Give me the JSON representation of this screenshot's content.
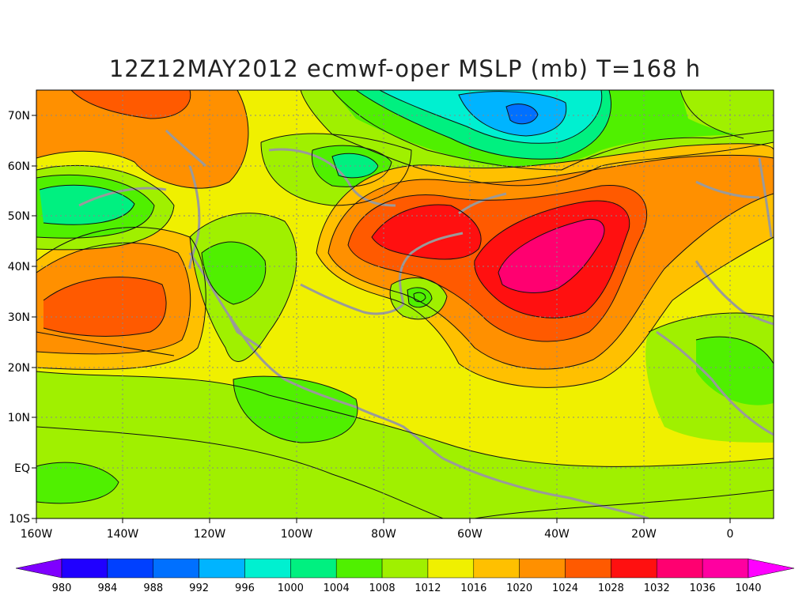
{
  "title": "12Z12MAY2012 ecmwf-oper MSLP (mb) T=168 h",
  "latitude_labels": [
    "70N",
    "60N",
    "50N",
    "40N",
    "30N",
    "20N",
    "10N",
    "EQ",
    "10S"
  ],
  "longitude_labels": [
    "160W",
    "140W",
    "120W",
    "100W",
    "80W",
    "60W",
    "40W",
    "20W",
    "0"
  ],
  "colorbar": {
    "labels": [
      "980",
      "984",
      "988",
      "992",
      "996",
      "1000",
      "1004",
      "1008",
      "1012",
      "1016",
      "1020",
      "1024",
      "1028",
      "1032",
      "1036",
      "1040"
    ],
    "colors": [
      "#7f00ff",
      "#2000ff",
      "#0040ff",
      "#0070ff",
      "#00b4ff",
      "#00f0d0",
      "#00f080",
      "#50f000",
      "#a0f000",
      "#f0f000",
      "#ffc000",
      "#ff9000",
      "#ff5a00",
      "#ff1010",
      "#ff0070",
      "#ff00a0",
      "#ff00ff"
    ]
  },
  "map_features": {
    "pressure_systems": [
      {
        "type": "high",
        "max_mb": "1036-1040",
        "location": "central North Atlantic near 42N 45W"
      },
      {
        "type": "high",
        "max_mb": "1028-1032",
        "location": "eastern Canada / Great Lakes near 47N 70W"
      },
      {
        "type": "high",
        "max_mb": "1024-1028",
        "location": "northeast Pacific near 32N 145W"
      },
      {
        "type": "low",
        "min_mb": "1000-1004",
        "location": "Gulf of Alaska near 52N 155W"
      },
      {
        "type": "low",
        "min_mb": "1000-1004",
        "location": "Hudson Bay near 60N 88W"
      },
      {
        "type": "low",
        "min_mb": "992-996",
        "location": "Davis Strait / Labrador Sea near 70N 50W"
      },
      {
        "type": "low",
        "min_mb": "1008",
        "location": "off Carolinas near 34N 72W"
      }
    ]
  }
}
